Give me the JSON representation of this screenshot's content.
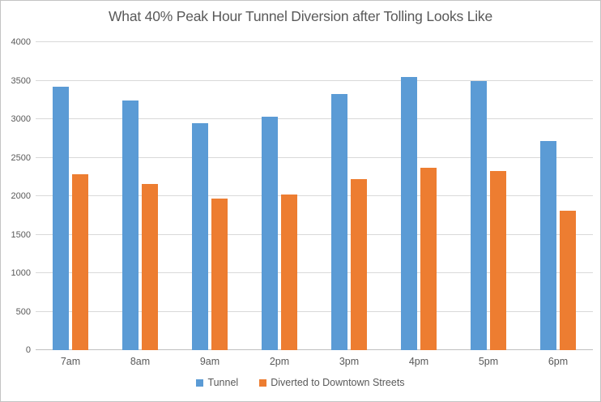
{
  "chart_data": {
    "type": "bar",
    "title": "What 40% Peak Hour Tunnel Diversion after Tolling Looks Like",
    "categories": [
      "7am",
      "8am",
      "9am",
      "2pm",
      "3pm",
      "4pm",
      "5pm",
      "6pm"
    ],
    "series": [
      {
        "name": "Tunnel",
        "color": "#5B9BD5",
        "values": [
          3420,
          3240,
          2950,
          3030,
          3330,
          3550,
          3490,
          2720
        ]
      },
      {
        "name": "Diverted to Downtown Streets",
        "color": "#ED7D31",
        "values": [
          2280,
          2160,
          1965,
          2020,
          2220,
          2365,
          2325,
          1815
        ]
      }
    ],
    "xlabel": "",
    "ylabel": "",
    "ylim": [
      0,
      4000
    ],
    "y_ticks": [
      0,
      500,
      1000,
      1500,
      2000,
      2500,
      3000,
      3500,
      4000
    ],
    "grid": true,
    "legend_position": "bottom",
    "colors": {
      "tunnel_bar": "#5B9BD5",
      "diverted_bar": "#ED7D31",
      "gridline": "#D9D9D9",
      "axis_line": "#BFBFBF",
      "text": "#595959",
      "frame_border": "#C3C3C3",
      "background": "#FFFFFF"
    }
  }
}
